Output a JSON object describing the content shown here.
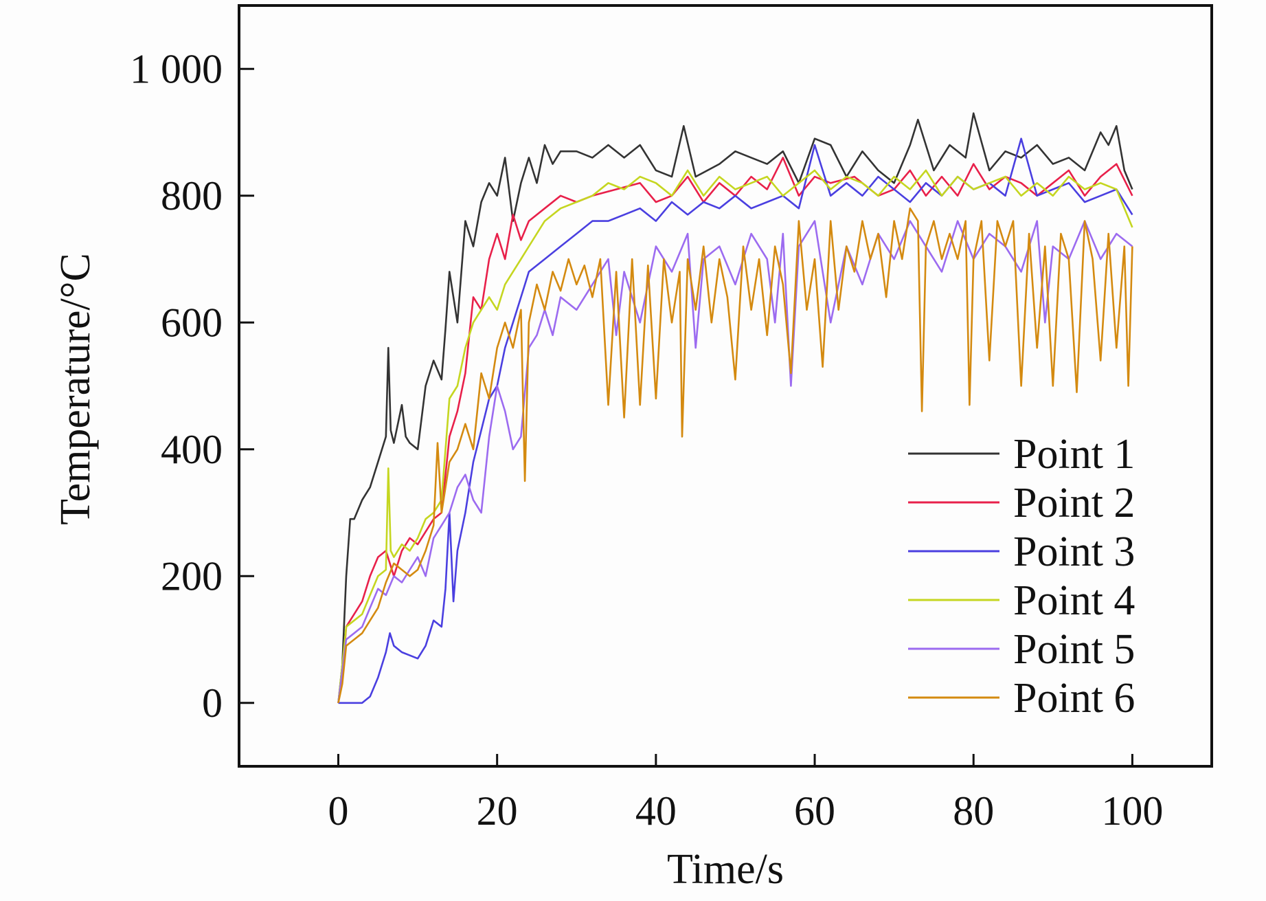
{
  "chart_data": {
    "type": "line",
    "title": "",
    "xlabel": "Time/s",
    "ylabel": "Temperature/°C",
    "xlim": [
      -12.5,
      110
    ],
    "ylim": [
      -100,
      1100
    ],
    "xticks": [
      0,
      20,
      40,
      60,
      80,
      100
    ],
    "xtick_labels": [
      "0",
      "20",
      "40",
      "60",
      "80",
      "100"
    ],
    "yticks": [
      0,
      200,
      400,
      600,
      800,
      1000
    ],
    "ytick_labels": [
      "0",
      "200",
      "400",
      "600",
      "800",
      "1 000"
    ],
    "grid": false,
    "legend_position": "lower-right",
    "series": [
      {
        "name": "Point 1",
        "color": "#333333",
        "x": [
          0,
          0.5,
          1,
          1.5,
          2,
          3,
          4,
          5,
          6,
          6.3,
          6.6,
          7,
          8,
          8.5,
          9,
          10,
          11,
          12,
          13,
          13.5,
          14,
          15,
          16,
          17,
          18,
          19,
          20,
          21,
          22,
          23,
          24,
          25,
          26,
          27,
          28,
          30,
          32,
          34,
          36,
          38,
          40,
          42,
          43.5,
          45,
          48,
          50,
          52,
          54,
          56,
          58,
          60,
          62,
          64,
          66,
          68,
          70,
          72,
          73,
          75,
          77,
          79,
          80,
          82,
          84,
          86,
          88,
          90,
          92,
          94,
          96,
          97,
          98,
          99,
          100
        ],
        "y": [
          0,
          60,
          200,
          290,
          290,
          320,
          340,
          380,
          420,
          560,
          430,
          410,
          470,
          420,
          410,
          400,
          500,
          540,
          510,
          590,
          680,
          600,
          760,
          720,
          790,
          820,
          800,
          860,
          760,
          820,
          860,
          820,
          880,
          850,
          870,
          870,
          860,
          880,
          860,
          880,
          840,
          830,
          910,
          830,
          850,
          870,
          860,
          850,
          870,
          820,
          890,
          880,
          830,
          870,
          840,
          820,
          880,
          920,
          840,
          880,
          860,
          930,
          840,
          870,
          860,
          880,
          850,
          860,
          840,
          900,
          880,
          910,
          840,
          810
        ]
      },
      {
        "name": "Point 2",
        "color": "#e8204a",
        "x": [
          0,
          0.5,
          1,
          2,
          3,
          4,
          5,
          6,
          7,
          8,
          9,
          10,
          11,
          12,
          13,
          14,
          15,
          16,
          17,
          18,
          19,
          20,
          21,
          22,
          23,
          24,
          26,
          28,
          30,
          32,
          35,
          38,
          40,
          42,
          44,
          46,
          48,
          50,
          52,
          54,
          56,
          58,
          60,
          62,
          65,
          68,
          70,
          72,
          74,
          76,
          78,
          80,
          82,
          84,
          86,
          88,
          90,
          92,
          94,
          96,
          98,
          100
        ],
        "y": [
          0,
          40,
          120,
          140,
          160,
          200,
          230,
          240,
          200,
          240,
          260,
          250,
          270,
          290,
          300,
          420,
          460,
          520,
          640,
          620,
          700,
          740,
          700,
          770,
          730,
          760,
          780,
          800,
          790,
          800,
          810,
          820,
          790,
          800,
          830,
          790,
          820,
          800,
          830,
          810,
          860,
          800,
          830,
          820,
          830,
          800,
          810,
          840,
          800,
          830,
          800,
          850,
          810,
          830,
          820,
          800,
          820,
          840,
          800,
          830,
          850,
          800
        ]
      },
      {
        "name": "Point 3",
        "color": "#4a3fe0",
        "x": [
          0,
          1,
          2,
          3,
          3.5,
          4,
          5,
          6,
          6.5,
          7,
          8,
          9,
          10,
          11,
          12,
          13,
          13.5,
          14,
          14.5,
          15,
          16,
          17,
          18,
          19,
          20,
          21,
          22,
          23,
          24,
          26,
          28,
          30,
          32,
          34,
          36,
          38,
          40,
          42,
          44,
          46,
          48,
          50,
          52,
          54,
          56,
          58,
          60,
          62,
          64,
          66,
          68,
          70,
          72,
          74,
          76,
          78,
          80,
          82,
          84,
          86,
          88,
          90,
          92,
          94,
          96,
          98,
          100
        ],
        "y": [
          0,
          0,
          0,
          0,
          5,
          10,
          40,
          80,
          110,
          90,
          80,
          75,
          70,
          90,
          130,
          120,
          180,
          300,
          160,
          240,
          300,
          380,
          430,
          480,
          500,
          560,
          600,
          640,
          680,
          700,
          720,
          740,
          760,
          760,
          770,
          780,
          760,
          790,
          770,
          790,
          780,
          800,
          780,
          790,
          800,
          780,
          880,
          800,
          820,
          800,
          830,
          810,
          790,
          820,
          800,
          830,
          810,
          820,
          800,
          890,
          800,
          810,
          820,
          790,
          800,
          810,
          770
        ]
      },
      {
        "name": "Point 4",
        "color": "#c5d620",
        "x": [
          0,
          0.5,
          1,
          2,
          3,
          4,
          5,
          6,
          6.3,
          6.6,
          7,
          8,
          9,
          10,
          11,
          12,
          13,
          14,
          15,
          16,
          17,
          18,
          19,
          20,
          21,
          22,
          23,
          24,
          26,
          28,
          30,
          32,
          34,
          36,
          38,
          40,
          42,
          44,
          46,
          48,
          50,
          52,
          54,
          56,
          58,
          60,
          62,
          64,
          66,
          68,
          70,
          72,
          74,
          76,
          78,
          80,
          82,
          84,
          86,
          88,
          90,
          92,
          94,
          96,
          98,
          100
        ],
        "y": [
          0,
          60,
          120,
          130,
          140,
          170,
          200,
          210,
          370,
          240,
          230,
          250,
          240,
          260,
          290,
          300,
          320,
          480,
          500,
          560,
          600,
          620,
          640,
          620,
          660,
          680,
          700,
          720,
          760,
          780,
          790,
          800,
          820,
          810,
          830,
          820,
          800,
          840,
          800,
          830,
          810,
          820,
          830,
          800,
          820,
          840,
          810,
          830,
          820,
          800,
          830,
          810,
          840,
          800,
          830,
          810,
          820,
          830,
          800,
          820,
          800,
          830,
          810,
          820,
          810,
          750
        ]
      },
      {
        "name": "Point 5",
        "color": "#9c6bf0",
        "x": [
          0,
          0.5,
          1,
          2,
          3,
          4,
          5,
          6,
          7,
          8,
          9,
          10,
          11,
          12,
          13,
          14,
          15,
          16,
          17,
          18,
          19,
          20,
          21,
          22,
          23,
          24,
          25,
          26,
          27,
          28,
          30,
          32,
          34,
          35,
          36,
          38,
          40,
          42,
          44,
          45,
          46,
          48,
          50,
          52,
          54,
          55,
          56,
          57,
          58,
          60,
          62,
          64,
          66,
          68,
          70,
          72,
          74,
          76,
          78,
          80,
          82,
          84,
          86,
          88,
          89,
          90,
          92,
          94,
          96,
          98,
          100
        ],
        "y": [
          0,
          50,
          100,
          110,
          120,
          150,
          180,
          170,
          200,
          190,
          210,
          230,
          200,
          260,
          280,
          300,
          340,
          360,
          320,
          300,
          420,
          500,
          460,
          400,
          420,
          560,
          580,
          620,
          580,
          640,
          620,
          660,
          700,
          580,
          680,
          600,
          720,
          680,
          740,
          560,
          700,
          720,
          660,
          740,
          700,
          600,
          740,
          500,
          720,
          760,
          600,
          720,
          660,
          740,
          700,
          760,
          720,
          680,
          760,
          700,
          740,
          720,
          680,
          760,
          600,
          720,
          700,
          760,
          700,
          740,
          720
        ]
      },
      {
        "name": "Point 6",
        "color": "#d48a10",
        "x": [
          0,
          0.5,
          1,
          2,
          3,
          4,
          5,
          6,
          7,
          8,
          9,
          10,
          11,
          12,
          12.5,
          13,
          14,
          15,
          16,
          17,
          18,
          19,
          20,
          21,
          22,
          23,
          23.5,
          24,
          25,
          26,
          27,
          28,
          29,
          30,
          31,
          32,
          33,
          34,
          35,
          36,
          37,
          38,
          39,
          40,
          41,
          42,
          43,
          43.3,
          44,
          45,
          46,
          47,
          48,
          49,
          50,
          51,
          52,
          53,
          54,
          55,
          56,
          57,
          58,
          59,
          60,
          61,
          62,
          63,
          64,
          65,
          66,
          67,
          68,
          69,
          70,
          71,
          72,
          73,
          73.5,
          74,
          75,
          76,
          77,
          78,
          79,
          79.5,
          80,
          81,
          82,
          83,
          84,
          85,
          86,
          87,
          88,
          89,
          90,
          91,
          92,
          93,
          94,
          95,
          96,
          97,
          98,
          99,
          99.5,
          100
        ],
        "y": [
          0,
          30,
          90,
          100,
          110,
          130,
          150,
          190,
          220,
          210,
          200,
          210,
          240,
          280,
          410,
          300,
          380,
          400,
          440,
          400,
          520,
          480,
          560,
          600,
          560,
          620,
          350,
          600,
          660,
          620,
          680,
          650,
          700,
          660,
          690,
          640,
          700,
          470,
          680,
          450,
          700,
          470,
          690,
          480,
          700,
          600,
          680,
          420,
          700,
          620,
          720,
          600,
          700,
          640,
          510,
          720,
          620,
          700,
          580,
          720,
          660,
          520,
          760,
          620,
          700,
          530,
          760,
          620,
          720,
          680,
          760,
          700,
          740,
          640,
          760,
          700,
          780,
          760,
          460,
          720,
          760,
          700,
          740,
          700,
          760,
          470,
          700,
          760,
          540,
          760,
          720,
          760,
          500,
          740,
          560,
          720,
          500,
          740,
          700,
          490,
          760,
          700,
          540,
          740,
          560,
          720,
          500,
          720
        ]
      }
    ]
  }
}
